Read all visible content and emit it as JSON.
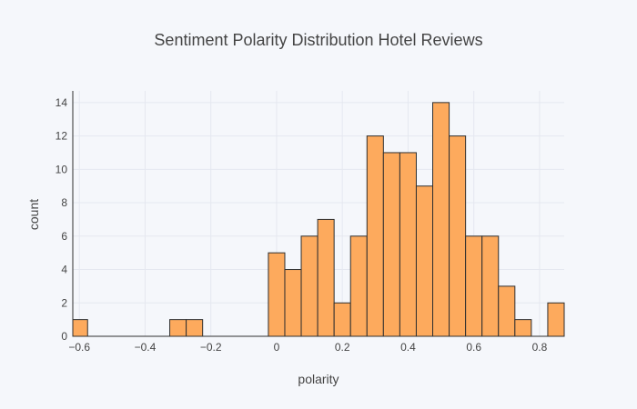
{
  "chart_data": {
    "type": "bar",
    "title": "Sentiment Polarity Distribution Hotel Reviews",
    "xlabel": "polarity",
    "ylabel": "count",
    "xlim": [
      -0.62,
      0.875
    ],
    "ylim": [
      0,
      14.7
    ],
    "bin_width": 0.05,
    "bin_start": -0.625,
    "values": [
      1,
      0,
      0,
      0,
      0,
      0,
      1,
      1,
      0,
      0,
      0,
      0,
      5,
      4,
      6,
      7,
      2,
      6,
      12,
      11,
      11,
      9,
      14,
      12,
      6,
      6,
      3,
      1,
      0,
      2
    ],
    "x_ticks": [
      -0.6,
      -0.4,
      -0.2,
      0,
      0.2,
      0.4,
      0.6,
      0.8
    ],
    "x_tick_labels": [
      "−0.6",
      "−0.4",
      "−0.2",
      "0",
      "0.2",
      "0.4",
      "0.6",
      "0.8"
    ],
    "y_ticks": [
      0,
      2,
      4,
      6,
      8,
      10,
      12,
      14
    ],
    "y_tick_labels": [
      "0",
      "2",
      "4",
      "6",
      "8",
      "10",
      "12",
      "14"
    ],
    "grid": true,
    "colors": {
      "bar_fill": "#fdaa5d",
      "bar_stroke": "#2f2f2f",
      "background": "#f5f7fb",
      "grid": "#e5e8f0"
    }
  }
}
